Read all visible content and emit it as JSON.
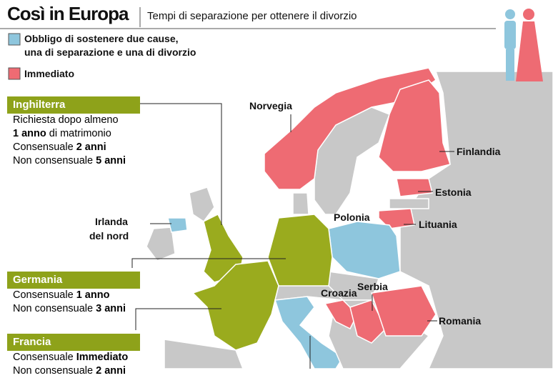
{
  "header": {
    "title": "Così in Europa",
    "subtitle": "Tempi di separazione per ottenere il divorzio"
  },
  "legend": [
    {
      "color": "#8ec6dd",
      "lines": [
        "Obbligo di sostenere due cause,",
        "una di separazione e una di divorzio"
      ]
    },
    {
      "color": "#ee6b73",
      "lines": [
        "Immediato"
      ]
    }
  ],
  "boxes": [
    {
      "title": "Inghilterra",
      "lines": [
        [
          {
            "text": "Richiesta dopo almeno"
          }
        ],
        [
          {
            "text": "1 anno",
            "bold": true
          },
          {
            "text": "di matrimonio"
          }
        ],
        [
          {
            "text": "Consensuale"
          },
          {
            "text": "2 anni",
            "bold": true
          }
        ],
        [
          {
            "text": "Non consensuale"
          },
          {
            "text": "5 anni",
            "bold": true
          }
        ]
      ]
    },
    {
      "title": "Germania",
      "lines": [
        [
          {
            "text": "Consensuale"
          },
          {
            "text": "1 anno",
            "bold": true
          }
        ],
        [
          {
            "text": "Non consensuale"
          },
          {
            "text": "3 anni",
            "bold": true
          }
        ]
      ]
    },
    {
      "title": "Francia",
      "lines": [
        [
          {
            "text": "Consensuale"
          },
          {
            "text": "Immediato",
            "bold": true
          }
        ],
        [
          {
            "text": "Non consensuale"
          },
          {
            "text": "2 anni",
            "bold": true
          }
        ]
      ]
    }
  ],
  "map_labels": [
    "Norvegia",
    "Finlandia",
    "Estonia",
    "Lituania",
    "Polonia",
    "Irlanda",
    "del nord",
    "Croazia",
    "Serbia",
    "Romania"
  ]
}
